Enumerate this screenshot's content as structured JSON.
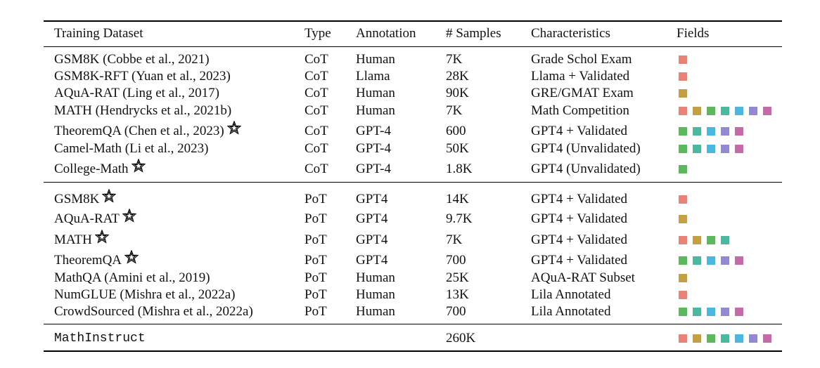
{
  "headers": [
    "Training Dataset",
    "Type",
    "Annotation",
    "# Samples",
    "Characteristics",
    "Fields"
  ],
  "field_colors": [
    "#e8837a",
    "#c3a045",
    "#5cb85c",
    "#4db8a0",
    "#4ab7e0",
    "#9189d2",
    "#c76aa8"
  ],
  "rows": [
    {
      "dataset": "GSM8K (Cobbe et al., 2021)",
      "type": "CoT",
      "annotation": "Human",
      "samples": "7K",
      "characteristics": "Grade Schol Exam",
      "star": false,
      "fields": [
        0
      ]
    },
    {
      "dataset": "GSM8K-RFT (Yuan et al., 2023)",
      "type": "CoT",
      "annotation": "Llama",
      "samples": "28K",
      "characteristics": "Llama + Validated",
      "star": false,
      "fields": [
        0
      ]
    },
    {
      "dataset": "AQuA-RAT (Ling et al., 2017)",
      "type": "CoT",
      "annotation": "Human",
      "samples": "90K",
      "characteristics": "GRE/GMAT Exam",
      "star": false,
      "fields": [
        1
      ]
    },
    {
      "dataset": "MATH (Hendrycks et al., 2021b)",
      "type": "CoT",
      "annotation": "Human",
      "samples": "7K",
      "characteristics": "Math Competition",
      "star": false,
      "fields": [
        0,
        1,
        2,
        3,
        4,
        5,
        6
      ]
    },
    {
      "dataset": "TheoremQA (Chen et al., 2023)",
      "type": "CoT",
      "annotation": "GPT-4",
      "samples": "600",
      "characteristics": "GPT4 + Validated",
      "star": true,
      "fields": [
        2,
        3,
        4,
        5,
        6
      ]
    },
    {
      "dataset": "Camel-Math (Li et al., 2023)",
      "type": "CoT",
      "annotation": "GPT-4",
      "samples": "50K",
      "characteristics": "GPT4 (Unvalidated)",
      "star": false,
      "fields": [
        2,
        3,
        4,
        5,
        6
      ]
    },
    {
      "dataset": "College-Math",
      "type": "CoT",
      "annotation": "GPT-4",
      "samples": "1.8K",
      "characteristics": "GPT4 (Unvalidated)",
      "star": true,
      "fields": [
        2
      ]
    },
    {
      "dataset": "GSM8K",
      "type": "PoT",
      "annotation": "GPT4",
      "samples": "14K",
      "characteristics": "GPT4 + Validated",
      "star": true,
      "fields": [
        0
      ]
    },
    {
      "dataset": "AQuA-RAT",
      "type": "PoT",
      "annotation": "GPT4",
      "samples": "9.7K",
      "characteristics": "GPT4 + Validated",
      "star": true,
      "fields": [
        1
      ]
    },
    {
      "dataset": "MATH",
      "type": "PoT",
      "annotation": "GPT4",
      "samples": "7K",
      "characteristics": "GPT4 + Validated",
      "star": true,
      "fields": [
        0,
        1,
        2,
        3
      ]
    },
    {
      "dataset": "TheoremQA",
      "type": "PoT",
      "annotation": "GPT4",
      "samples": "700",
      "characteristics": "GPT4 + Validated",
      "star": true,
      "fields": [
        2,
        3,
        4,
        5,
        6
      ]
    },
    {
      "dataset": "MathQA (Amini et al., 2019)",
      "type": "PoT",
      "annotation": "Human",
      "samples": "25K",
      "characteristics": "AQuA-RAT Subset",
      "star": false,
      "fields": [
        1
      ]
    },
    {
      "dataset": "NumGLUE (Mishra et al., 2022a)",
      "type": "PoT",
      "annotation": "Human",
      "samples": "13K",
      "characteristics": "Lila Annotated",
      "star": false,
      "fields": [
        0
      ]
    },
    {
      "dataset": "CrowdSourced (Mishra et al., 2022a)",
      "type": "PoT",
      "annotation": "Human",
      "samples": "700",
      "characteristics": "Lila Annotated",
      "star": false,
      "fields": [
        2,
        3,
        4,
        5,
        6
      ]
    }
  ],
  "total": {
    "dataset": "MathInstruct",
    "samples": "260K",
    "fields": [
      0,
      1,
      2,
      3,
      4,
      5,
      6
    ]
  }
}
